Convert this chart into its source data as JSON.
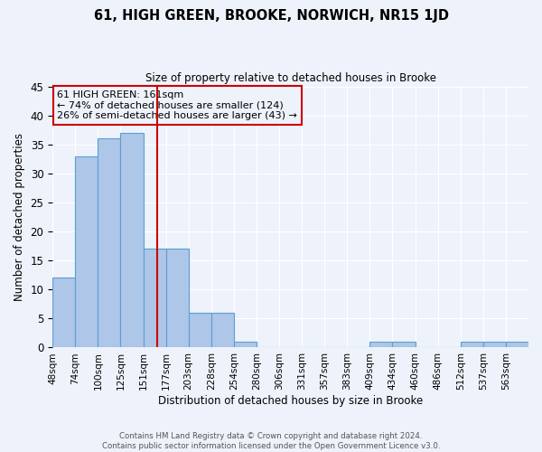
{
  "title": "61, HIGH GREEN, BROOKE, NORWICH, NR15 1JD",
  "subtitle": "Size of property relative to detached houses in Brooke",
  "xlabel": "Distribution of detached houses by size in Brooke",
  "ylabel": "Number of detached properties",
  "bin_labels": [
    "48sqm",
    "74sqm",
    "100sqm",
    "125sqm",
    "151sqm",
    "177sqm",
    "203sqm",
    "228sqm",
    "254sqm",
    "280sqm",
    "306sqm",
    "331sqm",
    "357sqm",
    "383sqm",
    "409sqm",
    "434sqm",
    "460sqm",
    "486sqm",
    "512sqm",
    "537sqm",
    "563sqm"
  ],
  "n_bins": 21,
  "bar_values": [
    12,
    33,
    36,
    37,
    17,
    17,
    6,
    6,
    1,
    0,
    0,
    0,
    0,
    0,
    1,
    1,
    0,
    0,
    1,
    1,
    1
  ],
  "bar_color": "#aec6e8",
  "bar_edge_color": "#5a9fd4",
  "vline_bin": 4.6,
  "vline_color": "#cc0000",
  "annotation_title": "61 HIGH GREEN: 161sqm",
  "annotation_line1": "← 74% of detached houses are smaller (124)",
  "annotation_line2": "26% of semi-detached houses are larger (43) →",
  "annotation_box_color": "#cc0000",
  "ylim": [
    0,
    45
  ],
  "yticks": [
    0,
    5,
    10,
    15,
    20,
    25,
    30,
    35,
    40,
    45
  ],
  "background_color": "#eef2fb",
  "grid_color": "#ffffff",
  "footer_line1": "Contains HM Land Registry data © Crown copyright and database right 2024.",
  "footer_line2": "Contains public sector information licensed under the Open Government Licence v3.0."
}
